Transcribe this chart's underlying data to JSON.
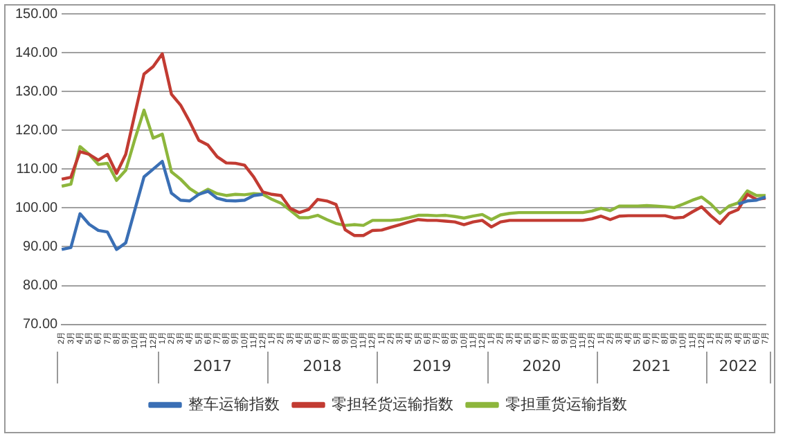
{
  "chart_data": {
    "type": "line",
    "categories": [
      "2月",
      "3月",
      "4月",
      "5月",
      "6月",
      "7月",
      "8月",
      "9月",
      "10月",
      "11月",
      "12月",
      "1月",
      "2月",
      "3月",
      "4月",
      "5月",
      "6月",
      "7月",
      "8月",
      "9月",
      "10月",
      "11月",
      "12月",
      "1月",
      "2月",
      "3月",
      "4月",
      "5月",
      "6月",
      "7月",
      "8月",
      "9月",
      "10月",
      "11月",
      "12月",
      "1月",
      "2月",
      "3月",
      "4月",
      "5月",
      "6月",
      "7月",
      "8月",
      "9月",
      "10月",
      "11月",
      "12月",
      "1月",
      "2月",
      "3月",
      "4月",
      "5月",
      "6月",
      "7月",
      "8月",
      "9月",
      "10月",
      "11月",
      "12月",
      "1月",
      "2月",
      "3月",
      "4月",
      "5月",
      "6月",
      "7月",
      "8月",
      "9月",
      "10月",
      "11月",
      "12月",
      "1月",
      "2月",
      "3月",
      "4月",
      "5月",
      "6月",
      "7月"
    ],
    "series": [
      {
        "name": "整车运输指数",
        "color": "#3a6fb5",
        "values": [
          89.3,
          89.8,
          98.5,
          95.8,
          94.2,
          93.8,
          89.3,
          91.0,
          99.5,
          108.0,
          110.0,
          112.0,
          103.8,
          102.0,
          101.8,
          103.5,
          104.3,
          102.5,
          101.9,
          101.8,
          102.0,
          103.2,
          103.5,
          null,
          null,
          null,
          null,
          null,
          null,
          null,
          null,
          null,
          null,
          null,
          null,
          null,
          null,
          null,
          null,
          null,
          null,
          null,
          null,
          null,
          null,
          null,
          null,
          null,
          null,
          null,
          null,
          null,
          null,
          null,
          null,
          null,
          null,
          null,
          null,
          null,
          null,
          null,
          null,
          null,
          null,
          null,
          null,
          null,
          null,
          null,
          null,
          null,
          null,
          null,
          101.0,
          101.8,
          102.0,
          102.8
        ]
      },
      {
        "name": "零担轻货运输指数",
        "color": "#c23b32",
        "values": [
          107.4,
          107.9,
          114.5,
          113.8,
          112.3,
          113.8,
          108.9,
          113.8,
          124.2,
          134.5,
          136.4,
          139.7,
          129.3,
          126.5,
          122.2,
          117.4,
          116.2,
          113.2,
          111.6,
          111.5,
          111.0,
          108.0,
          104.1,
          103.5,
          103.2,
          99.9,
          98.8,
          99.6,
          102.2,
          101.8,
          100.9,
          94.4,
          92.9,
          92.9,
          94.2,
          94.3,
          95.0,
          95.7,
          96.4,
          97.0,
          96.8,
          96.8,
          96.6,
          96.4,
          95.7,
          96.4,
          96.8,
          95.1,
          96.4,
          96.8,
          96.8,
          96.8,
          96.8,
          96.8,
          96.8,
          96.8,
          96.8,
          96.8,
          97.2,
          97.9,
          97.0,
          97.9,
          98.0,
          98.0,
          98.0,
          98.0,
          98.0,
          97.4,
          97.6,
          99.0,
          100.3,
          98.0,
          96.0,
          98.6,
          99.6,
          103.5,
          102.2,
          102.5
        ]
      },
      {
        "name": "零担重货运输指数",
        "color": "#8db63c",
        "values": [
          105.6,
          106.1,
          115.8,
          113.8,
          111.2,
          111.5,
          107.1,
          109.7,
          117.7,
          125.2,
          118.0,
          119.0,
          109.3,
          107.4,
          105.0,
          103.5,
          104.8,
          103.7,
          103.2,
          103.5,
          103.4,
          103.7,
          103.5,
          102.2,
          101.2,
          99.4,
          97.5,
          97.5,
          98.1,
          97.0,
          96.0,
          95.5,
          95.7,
          95.5,
          96.8,
          96.8,
          96.8,
          97.0,
          97.5,
          98.1,
          98.1,
          98.0,
          98.1,
          97.8,
          97.4,
          97.9,
          98.3,
          97.0,
          98.2,
          98.6,
          98.8,
          98.8,
          98.8,
          98.8,
          98.8,
          98.8,
          98.8,
          98.8,
          99.2,
          99.9,
          99.3,
          100.5,
          100.5,
          100.5,
          100.6,
          100.5,
          100.3,
          100.1,
          101.0,
          102.0,
          102.8,
          101.0,
          98.6,
          100.5,
          101.3,
          104.4,
          103.2,
          103.2
        ]
      }
    ],
    "annotations": [
      "2017",
      "2018",
      "2019",
      "2020",
      "2021",
      "2022"
    ],
    "ylim": [
      70,
      150
    ],
    "yticks": [
      {
        "value": 70,
        "label": "70.00"
      },
      {
        "value": 80,
        "label": "80.00"
      },
      {
        "value": 90,
        "label": "90.00"
      },
      {
        "value": 100,
        "label": "100.00"
      },
      {
        "value": 110,
        "label": "110.00"
      },
      {
        "value": 120,
        "label": "120.00"
      },
      {
        "value": 130,
        "label": "130.00"
      },
      {
        "value": 140,
        "label": "140.00"
      },
      {
        "value": 150,
        "label": "150.00"
      }
    ],
    "grid": "y",
    "legend": "bottom",
    "marker": "none",
    "line_style": "solid"
  }
}
